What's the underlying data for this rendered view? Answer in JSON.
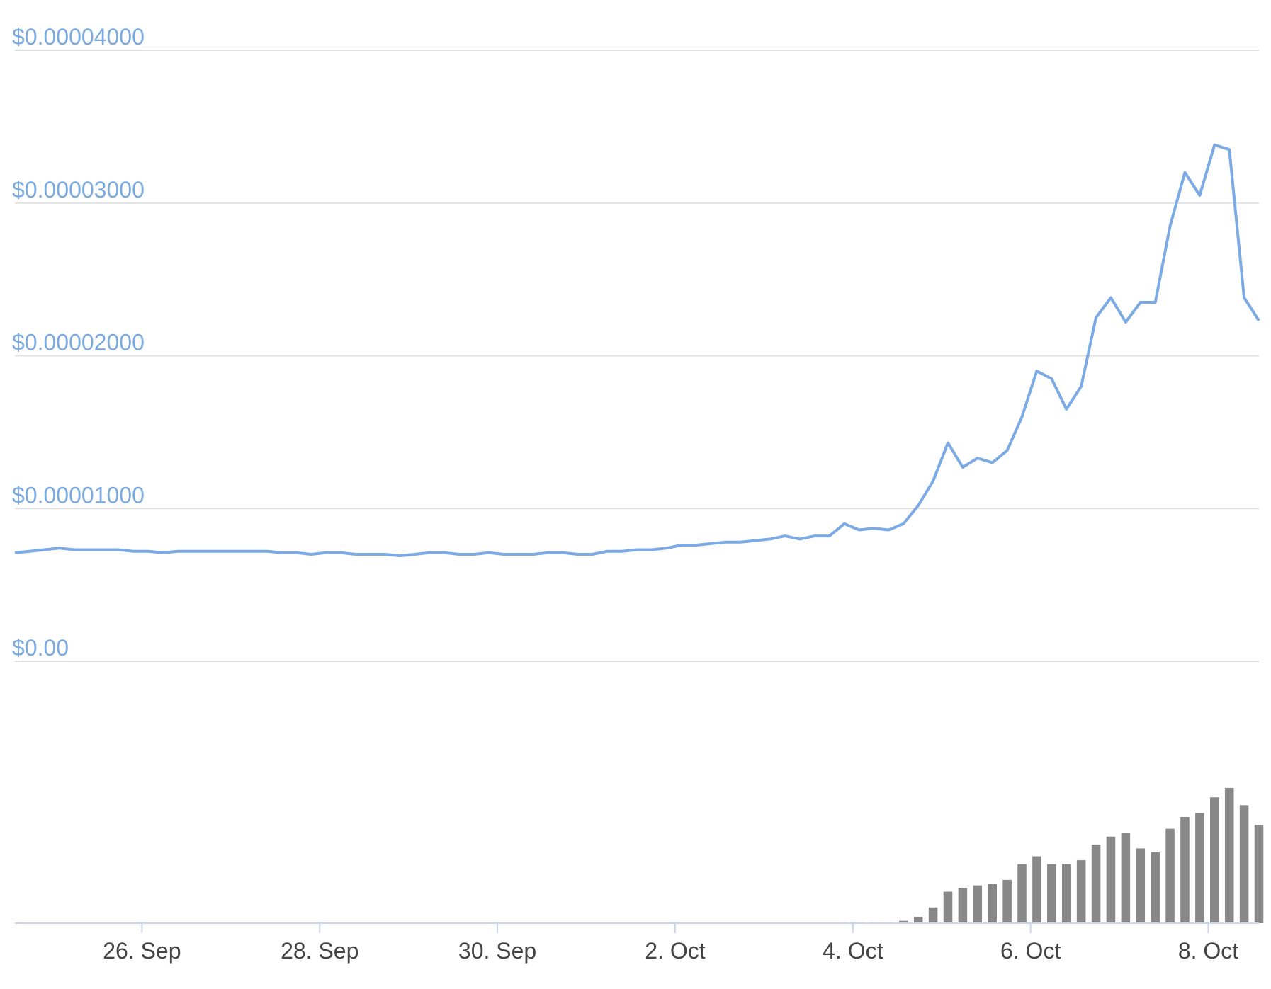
{
  "chart_data": [
    {
      "type": "line",
      "color": "#7caae4",
      "values": [
        7.1e-06,
        7.2e-06,
        7.3e-06,
        7.4e-06,
        7.3e-06,
        7.3e-06,
        7.3e-06,
        7.3e-06,
        7.2e-06,
        7.2e-06,
        7.1e-06,
        7.2e-06,
        7.2e-06,
        7.2e-06,
        7.2e-06,
        7.2e-06,
        7.2e-06,
        7.2e-06,
        7.1e-06,
        7.1e-06,
        7e-06,
        7.1e-06,
        7.1e-06,
        7e-06,
        7e-06,
        7e-06,
        6.9e-06,
        7e-06,
        7.1e-06,
        7.1e-06,
        7e-06,
        7e-06,
        7.1e-06,
        7e-06,
        7e-06,
        7e-06,
        7.1e-06,
        7.1e-06,
        7e-06,
        7e-06,
        7.2e-06,
        7.2e-06,
        7.3e-06,
        7.3e-06,
        7.4e-06,
        7.6e-06,
        7.6e-06,
        7.7e-06,
        7.8e-06,
        7.8e-06,
        7.9e-06,
        8e-06,
        8.2e-06,
        8e-06,
        8.2e-06,
        8.2e-06,
        9e-06,
        8.6e-06,
        8.7e-06,
        8.6e-06,
        9e-06,
        1.02e-05,
        1.18e-05,
        1.43e-05,
        1.27e-05,
        1.33e-05,
        1.3e-05,
        1.38e-05,
        1.6e-05,
        1.9e-05,
        1.85e-05,
        1.65e-05,
        1.8e-05,
        2.25e-05,
        2.38e-05,
        2.22e-05,
        2.35e-05,
        2.35e-05,
        2.85e-05,
        3.2e-05,
        3.05e-05,
        3.38e-05,
        3.35e-05,
        2.38e-05,
        2.23e-05
      ],
      "xlim": [
        24.57,
        38.57
      ],
      "ylim": [
        0,
        4e-05
      ],
      "yticks": [
        {
          "value": 0,
          "label": "$0.00"
        },
        {
          "value": 1e-05,
          "label": "$0.00001000"
        },
        {
          "value": 2e-05,
          "label": "$0.00002000"
        },
        {
          "value": 3e-05,
          "label": "$0.00003000"
        },
        {
          "value": 4e-05,
          "label": "$0.00004000"
        }
      ],
      "grid": true
    },
    {
      "type": "bar",
      "color": "#888888",
      "values": [
        0,
        0,
        0,
        0,
        0,
        0,
        0,
        0,
        0,
        0,
        0,
        0,
        0,
        0,
        0,
        0,
        0,
        0,
        0,
        0,
        0,
        0,
        0,
        0,
        0,
        0,
        0,
        0,
        0,
        0,
        0,
        0,
        0,
        0,
        0,
        0,
        0,
        0,
        0,
        0,
        0,
        0,
        0,
        0,
        0,
        0,
        0,
        0,
        0,
        0,
        0,
        0,
        0,
        0,
        0,
        0,
        1,
        1,
        1,
        1,
        3,
        8,
        20,
        40,
        45,
        48,
        50,
        55,
        75,
        85,
        75,
        75,
        80,
        100,
        110,
        115,
        95,
        90,
        120,
        135,
        140,
        160,
        172,
        150,
        125
      ],
      "xlim": [
        24.57,
        38.57
      ],
      "ylim": [
        0,
        180
      ],
      "xticks": [
        {
          "value": 26,
          "label": "26. Sep"
        },
        {
          "value": 28,
          "label": "28. Sep"
        },
        {
          "value": 30,
          "label": "30. Sep"
        },
        {
          "value": 32,
          "label": "2. Oct"
        },
        {
          "value": 34,
          "label": "4. Oct"
        },
        {
          "value": 36,
          "label": "6. Oct"
        },
        {
          "value": 38,
          "label": "8. Oct"
        }
      ]
    }
  ]
}
